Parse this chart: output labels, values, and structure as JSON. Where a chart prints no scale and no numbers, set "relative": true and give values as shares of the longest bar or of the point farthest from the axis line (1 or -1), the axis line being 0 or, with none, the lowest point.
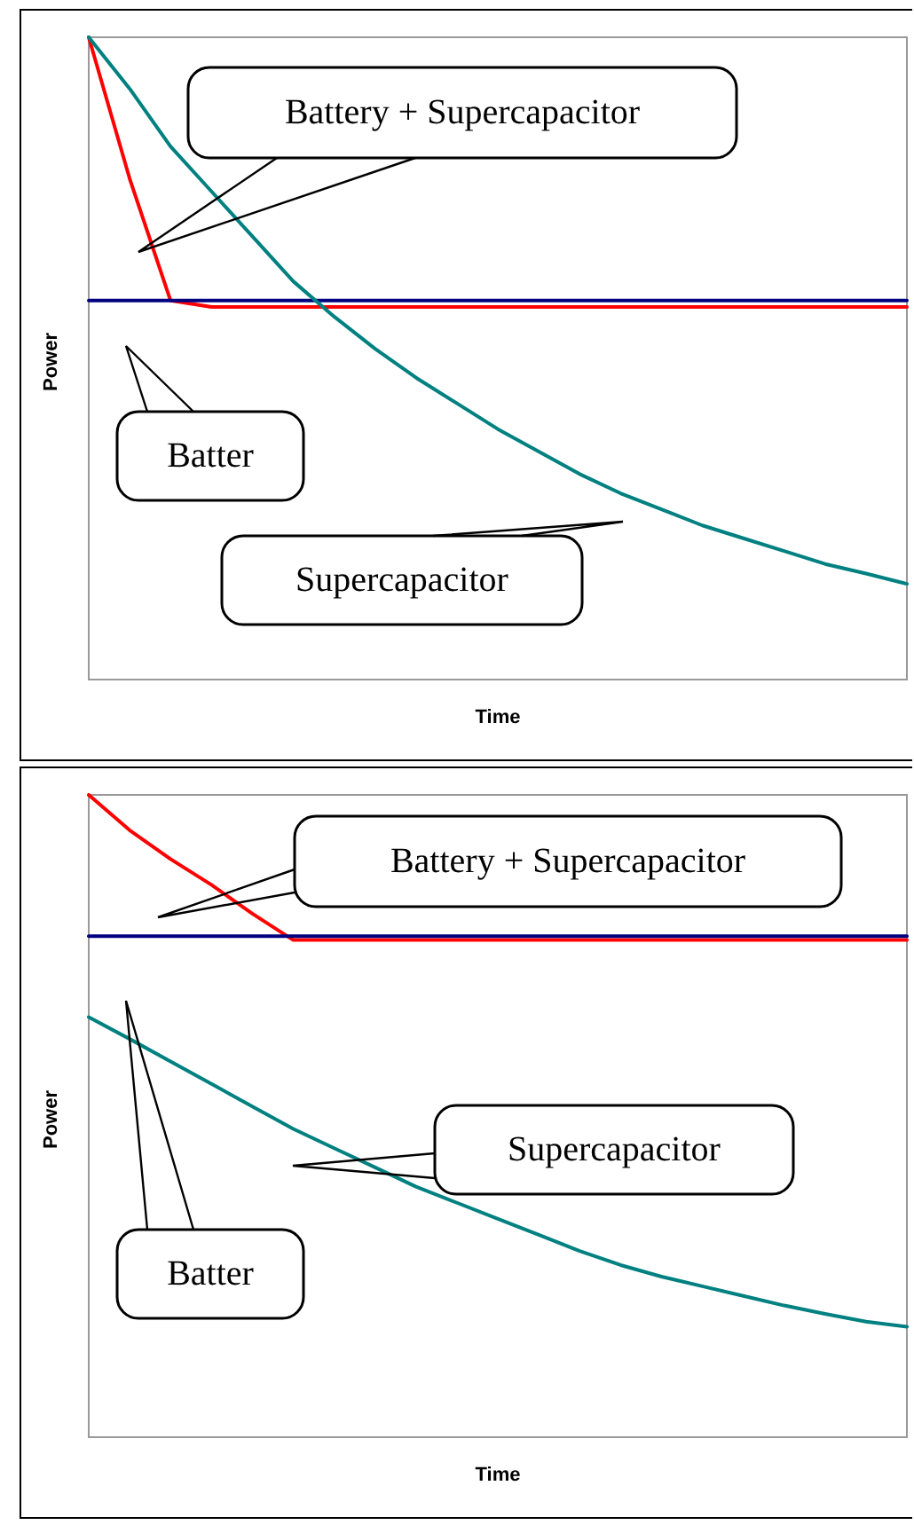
{
  "chart_data": [
    {
      "type": "line",
      "xlabel": "Time",
      "ylabel": "Power",
      "relative": true,
      "grid": false,
      "marker": "none",
      "annotations": [
        "Battery + Supercapacitor",
        "Batter",
        "Supercapacitor"
      ],
      "categories": [
        null,
        null,
        null,
        null,
        null,
        null,
        null,
        null,
        null,
        null,
        null,
        null,
        null,
        null,
        null,
        null,
        null,
        null,
        null,
        null,
        null
      ],
      "series": [
        {
          "color": "#ff0000",
          "values": [
            1.0,
            0.78,
            0.59,
            0.58,
            0.58,
            0.58,
            0.58,
            0.58,
            0.58,
            0.58,
            0.58,
            0.58,
            0.58,
            0.58,
            0.58,
            0.58,
            0.58,
            0.58,
            0.58,
            0.58,
            0.58
          ]
        },
        {
          "color": "#000080",
          "values": [
            0.59,
            0.59,
            0.59,
            0.59,
            0.59,
            0.59,
            0.59,
            0.59,
            0.59,
            0.59,
            0.59,
            0.59,
            0.59,
            0.59,
            0.59,
            0.59,
            0.59,
            0.59,
            0.59,
            0.59,
            0.59
          ]
        },
        {
          "color": "#008080",
          "values": [
            1.0,
            0.92,
            0.83,
            0.76,
            0.69,
            0.62,
            0.565,
            0.515,
            0.47,
            0.43,
            0.39,
            0.355,
            0.32,
            0.29,
            0.265,
            0.24,
            0.22,
            0.2,
            0.18,
            0.165,
            0.149
          ]
        }
      ]
    },
    {
      "type": "line",
      "xlabel": "Time",
      "ylabel": "Power",
      "relative": true,
      "grid": false,
      "marker": "none",
      "annotations": [
        "Battery + Supercapacitor",
        "Batter",
        "Supercapacitor"
      ],
      "categories": [
        null,
        null,
        null,
        null,
        null,
        null,
        null,
        null,
        null,
        null,
        null,
        null,
        null,
        null,
        null,
        null,
        null,
        null,
        null,
        null,
        null
      ],
      "series": [
        {
          "color": "#ff0000",
          "values": [
            1.0,
            0.945,
            0.9,
            0.86,
            0.815,
            0.774,
            0.774,
            0.774,
            0.774,
            0.774,
            0.774,
            0.774,
            0.774,
            0.774,
            0.774,
            0.774,
            0.774,
            0.774,
            0.774,
            0.774,
            0.774
          ]
        },
        {
          "color": "#000080",
          "values": [
            0.78,
            0.78,
            0.78,
            0.78,
            0.78,
            0.78,
            0.78,
            0.78,
            0.78,
            0.78,
            0.78,
            0.78,
            0.78,
            0.78,
            0.78,
            0.78,
            0.78,
            0.78,
            0.78,
            0.78,
            0.78
          ]
        },
        {
          "color": "#008080",
          "values": [
            0.654,
            0.62,
            0.585,
            0.55,
            0.515,
            0.48,
            0.45,
            0.42,
            0.39,
            0.365,
            0.34,
            0.315,
            0.29,
            0.268,
            0.25,
            0.235,
            0.22,
            0.205,
            0.192,
            0.18,
            0.172
          ]
        }
      ]
    }
  ]
}
